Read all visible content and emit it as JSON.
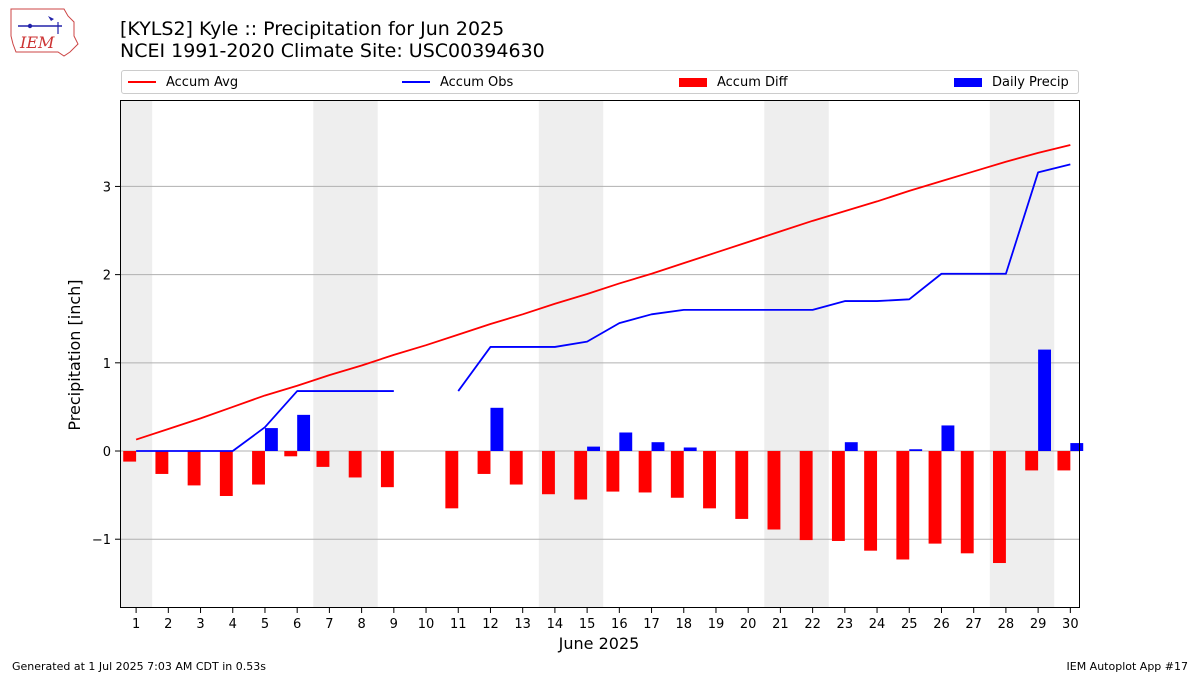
{
  "header": {
    "title_line1": "[KYLS2] Kyle :: Precipitation for Jun 2025",
    "title_line2": "NCEI 1991-2020 Climate Site: USC00394630",
    "logo_text": "IEM"
  },
  "footer": {
    "generated": "Generated at 1 Jul 2025 7:03 AM CDT in 0.53s",
    "app": "IEM Autoplot App #17"
  },
  "colors": {
    "accum_avg": "#ff0000",
    "accum_obs": "#0000ff",
    "accum_diff": "#ff0000",
    "daily_precip": "#0000ff",
    "weekend_shading": "#eeeeee",
    "grid": "#b0b0b0"
  },
  "chart_data": {
    "type": "bar",
    "xlabel": "June 2025",
    "ylabel": "Precipitation [inch]",
    "ylim": [
      -1.78,
      3.98
    ],
    "yticks": [
      -1,
      0,
      1,
      2,
      3
    ],
    "ytick_labels": [
      "−1",
      "0",
      "1",
      "2",
      "3"
    ],
    "grid": "horizontal",
    "legend_position": "top",
    "days": [
      1,
      2,
      3,
      4,
      5,
      6,
      7,
      8,
      9,
      10,
      11,
      12,
      13,
      14,
      15,
      16,
      17,
      18,
      19,
      20,
      21,
      22,
      23,
      24,
      25,
      26,
      27,
      28,
      29,
      30
    ],
    "shaded_days": [
      1,
      7,
      8,
      14,
      15,
      21,
      22,
      28,
      29
    ],
    "series": [
      {
        "name": "Accum Avg",
        "kind": "line",
        "values": [
          0.13,
          0.25,
          0.37,
          0.5,
          0.63,
          0.74,
          0.86,
          0.97,
          1.09,
          1.2,
          1.32,
          1.44,
          1.55,
          1.67,
          1.78,
          1.9,
          2.01,
          2.13,
          2.25,
          2.37,
          2.49,
          2.61,
          2.72,
          2.83,
          2.95,
          3.06,
          3.17,
          3.28,
          3.38,
          3.47
        ]
      },
      {
        "name": "Accum Obs",
        "kind": "line",
        "values": [
          0.0,
          0.0,
          0.0,
          0.0,
          0.27,
          0.68,
          0.68,
          0.68,
          0.68,
          null,
          0.68,
          1.18,
          1.18,
          1.18,
          1.24,
          1.45,
          1.55,
          1.6,
          1.6,
          1.6,
          1.6,
          1.6,
          1.7,
          1.7,
          1.72,
          2.01,
          2.01,
          2.01,
          3.16,
          3.25
        ]
      },
      {
        "name": "Accum Diff",
        "kind": "bar",
        "values": [
          -0.12,
          -0.26,
          -0.39,
          -0.51,
          -0.38,
          -0.06,
          -0.18,
          -0.3,
          -0.41,
          null,
          -0.65,
          -0.26,
          -0.38,
          -0.49,
          -0.55,
          -0.46,
          -0.47,
          -0.53,
          -0.65,
          -0.77,
          -0.89,
          -1.01,
          -1.02,
          -1.13,
          -1.23,
          -1.05,
          -1.16,
          -1.27,
          -0.22,
          -0.22
        ]
      },
      {
        "name": "Daily Precip",
        "kind": "bar",
        "values": [
          0,
          0,
          0,
          0,
          0.26,
          0.41,
          0,
          0,
          0,
          null,
          0,
          0.49,
          0,
          0,
          0.05,
          0.21,
          0.1,
          0.04,
          0,
          0,
          0,
          0,
          0.1,
          0,
          0.02,
          0.29,
          0,
          0,
          1.15,
          0.09
        ]
      }
    ]
  }
}
